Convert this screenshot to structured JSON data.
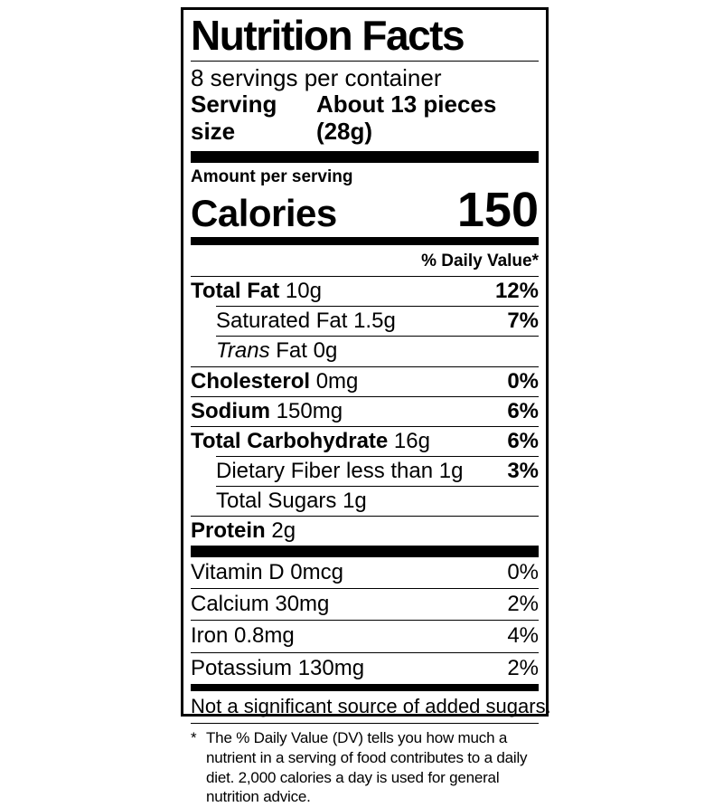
{
  "label": {
    "title": "Nutrition Facts",
    "servings_per_container": "8 servings per container",
    "serving_size_label": "Serving size",
    "serving_size_value": "About 13 pieces (28g)",
    "amount_per_serving": "Amount per serving",
    "calories_label": "Calories",
    "calories_value": "150",
    "daily_value_header": "% Daily Value*",
    "nutrients": [
      {
        "bold": "Total Fat",
        "rest": " 10g",
        "dv": "12%"
      },
      {
        "rest": "Saturated Fat 1.5g",
        "dv": "7%"
      },
      {
        "italic": "Trans",
        "rest": " Fat 0g",
        "dv": ""
      },
      {
        "bold": "Cholesterol",
        "rest": " 0mg",
        "dv": "0%"
      },
      {
        "bold": "Sodium",
        "rest": " 150mg",
        "dv": "6%"
      },
      {
        "bold": "Total Carbohydrate",
        "rest": " 16g",
        "dv": "6%"
      },
      {
        "rest": "Dietary Fiber less than 1g",
        "dv": "3%"
      },
      {
        "rest": "Total Sugars 1g",
        "dv": ""
      },
      {
        "bold": "Protein",
        "rest": " 2g",
        "dv": ""
      }
    ],
    "vitamins": [
      {
        "text": "Vitamin D 0mcg",
        "dv": "0%"
      },
      {
        "text": "Calcium 30mg",
        "dv": "2%"
      },
      {
        "text": "Iron 0.8mg",
        "dv": "4%"
      },
      {
        "text": "Potassium 130mg",
        "dv": "2%"
      }
    ],
    "added_sugars_note": "Not a significant source of added sugars.",
    "footnote_symbol": "*",
    "footnote_text": "The % Daily Value (DV) tells you how much a nutrient in a serving of food contributes to a daily diet. 2,000 calories a day is used for general nutrition advice."
  }
}
